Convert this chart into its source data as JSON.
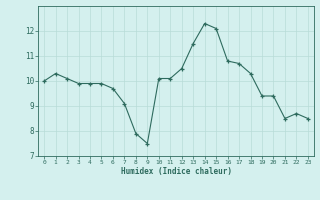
{
  "x": [
    0,
    1,
    2,
    3,
    4,
    5,
    6,
    7,
    8,
    9,
    10,
    11,
    12,
    13,
    14,
    15,
    16,
    17,
    18,
    19,
    20,
    21,
    22,
    23
  ],
  "y": [
    10.0,
    10.3,
    10.1,
    9.9,
    9.9,
    9.9,
    9.7,
    9.1,
    7.9,
    7.5,
    10.1,
    10.1,
    10.5,
    11.5,
    12.3,
    12.1,
    10.8,
    10.7,
    10.3,
    9.4,
    9.4,
    8.5,
    8.7,
    8.5
  ],
  "ylim": [
    7,
    13
  ],
  "yticks": [
    7,
    8,
    9,
    10,
    11,
    12
  ],
  "xlabel": "Humidex (Indice chaleur)",
  "line_color": "#2e6b5e",
  "marker_color": "#2e6b5e",
  "bg_color": "#d4f0ee",
  "grid_color": "#b8dcd8",
  "figsize": [
    3.2,
    2.0
  ],
  "dpi": 100
}
